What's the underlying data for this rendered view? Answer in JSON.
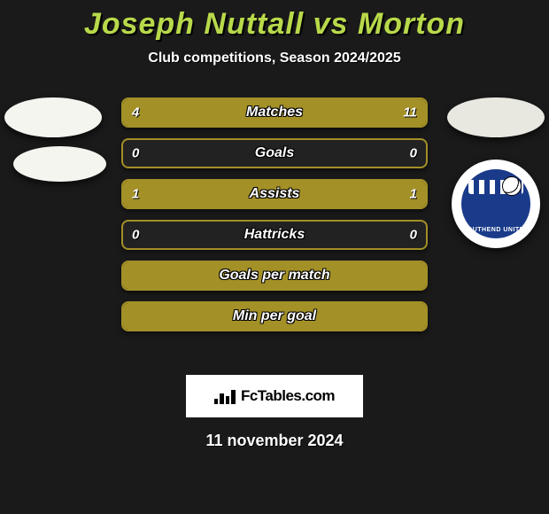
{
  "title": "Joseph Nuttall vs Morton",
  "subtitle": "Club competitions, Season 2024/2025",
  "colors": {
    "accent": "#a39027",
    "title": "#b8d94a",
    "bg": "#1a1a1a",
    "crest_primary": "#1a3a8a"
  },
  "crest_text": "SOUTHEND UNITED",
  "stat_bars": [
    {
      "label": "Matches",
      "left": "4",
      "right": "11",
      "left_pct": 27,
      "right_pct": 73
    },
    {
      "label": "Goals",
      "left": "0",
      "right": "0",
      "left_pct": 0,
      "right_pct": 0
    },
    {
      "label": "Assists",
      "left": "1",
      "right": "1",
      "left_pct": 50,
      "right_pct": 50
    },
    {
      "label": "Hattricks",
      "left": "0",
      "right": "0",
      "left_pct": 0,
      "right_pct": 0
    },
    {
      "label": "Goals per match",
      "left": "",
      "right": "",
      "left_pct": 100,
      "right_pct": 0
    },
    {
      "label": "Min per goal",
      "left": "",
      "right": "",
      "left_pct": 100,
      "right_pct": 0
    }
  ],
  "watermark": "FcTables.com",
  "date": "11 november 2024"
}
